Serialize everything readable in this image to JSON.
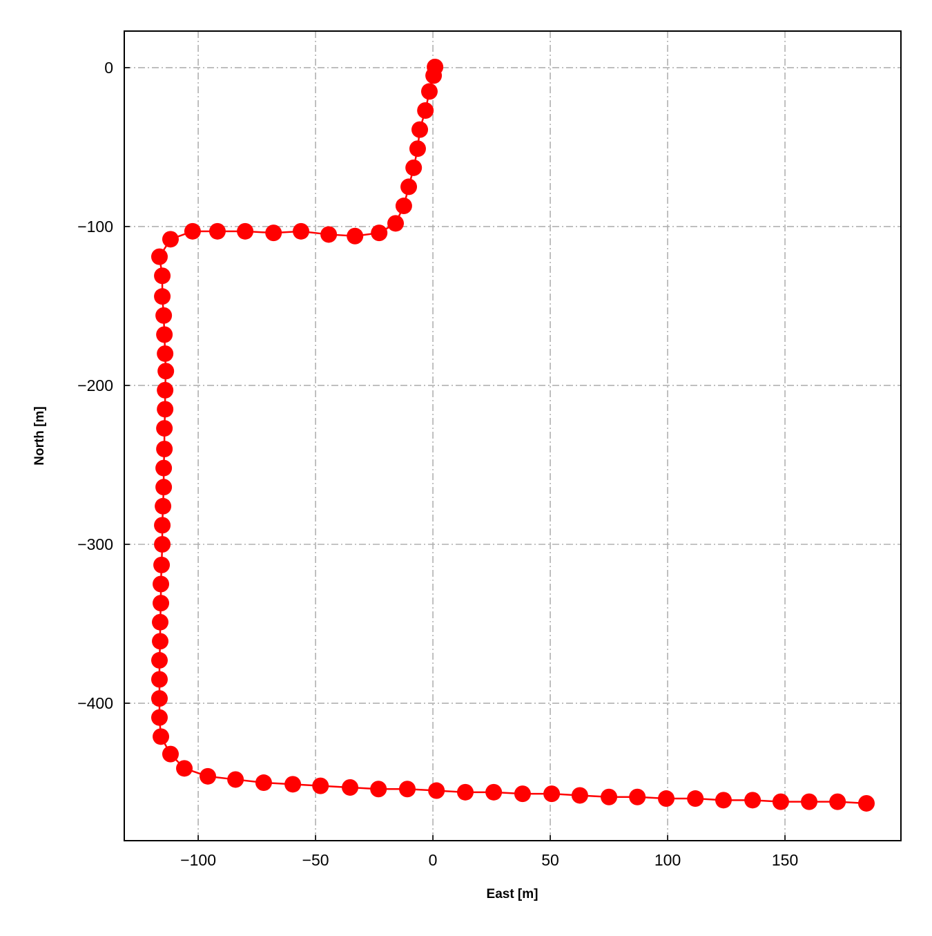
{
  "chart_data": {
    "type": "line",
    "xlabel": "East [m]",
    "ylabel": "North [m]",
    "x": [
      0.9,
      0.3,
      -1.5,
      -3.2,
      -5.6,
      -6.5,
      -8.2,
      -10.3,
      -12.4,
      -15.9,
      -22.9,
      -33.2,
      -44.4,
      -56.2,
      -67.9,
      -80,
      -91.8,
      -102.4,
      -111.8,
      -116.5,
      -115.3,
      -115.3,
      -114.7,
      -114.4,
      -114.1,
      -113.8,
      -114.1,
      -114.1,
      -114.4,
      -114.4,
      -114.7,
      -114.7,
      -115,
      -115.3,
      -115.3,
      -115.6,
      -115.9,
      -115.9,
      -116.2,
      -116.2,
      -116.5,
      -116.5,
      -116.5,
      -116.5,
      -115.9,
      -111.8,
      -105.9,
      -95.9,
      -84.1,
      -72.1,
      -59.7,
      -47.9,
      -35.3,
      -23.2,
      -10.9,
      1.5,
      13.8,
      25.9,
      38.2,
      50.6,
      62.6,
      75,
      87.1,
      99.4,
      111.8,
      123.8,
      136.2,
      148.2,
      160.3,
      172.4,
      184.7
    ],
    "values": [
      0.4,
      -5,
      -15,
      -27,
      -39,
      -51,
      -63,
      -75,
      -87,
      -98,
      -104,
      -106,
      -105,
      -103,
      -104,
      -103,
      -103,
      -103,
      -108,
      -119,
      -131,
      -144,
      -156,
      -168,
      -180,
      -191,
      -203,
      -215,
      -227,
      -240,
      -252,
      -264,
      -276,
      -288,
      -300,
      -313,
      -325,
      -337,
      -349,
      -361,
      -373,
      -385,
      -397,
      -409,
      -421,
      -432,
      -441,
      -446,
      -448,
      -450,
      -451,
      -452,
      -453,
      -454,
      -454,
      -455,
      -456,
      -456,
      -457,
      -457,
      -458,
      -459,
      -459,
      -460,
      -460,
      -461,
      -461,
      -462,
      -462,
      -462,
      -463
    ],
    "color": "#ff0000",
    "xlim": [
      -131.5,
      199.4
    ],
    "ylim": [
      -486.5,
      23
    ],
    "xticks": [
      {
        "value": -100,
        "label": "−100"
      },
      {
        "value": -50,
        "label": "−50"
      },
      0,
      50,
      100,
      150
    ],
    "yticks": [
      0,
      {
        "value": -100,
        "label": "−100"
      },
      {
        "value": -200,
        "label": "−200"
      },
      {
        "value": -300,
        "label": "−300"
      },
      {
        "value": -400,
        "label": "−400"
      }
    ],
    "grid": true
  }
}
